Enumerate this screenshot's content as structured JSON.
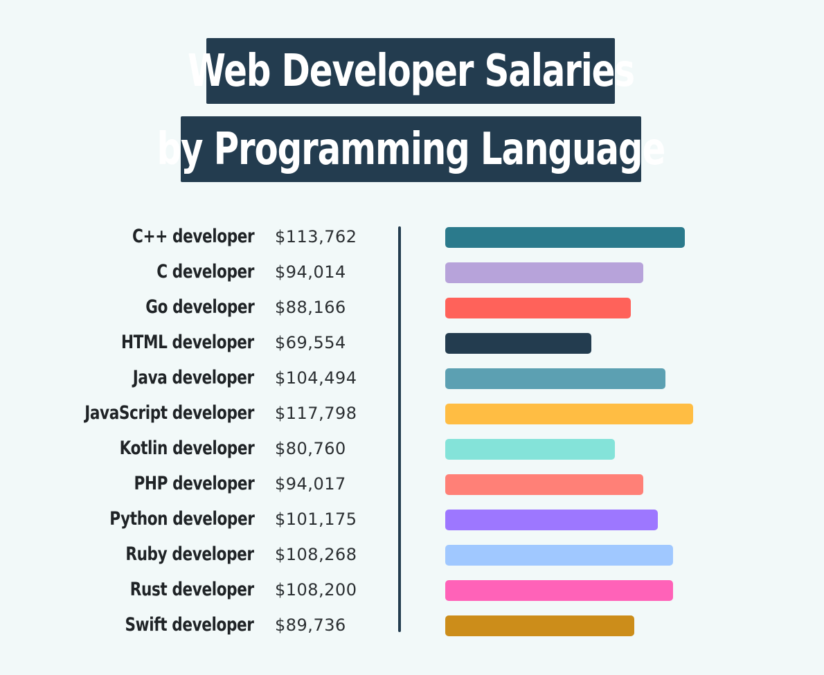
{
  "title": {
    "line1": "Web Developer Salaries",
    "line2": "by Programming Language"
  },
  "rows": [
    {
      "label": "C++ developer",
      "value": "$113,762",
      "color": "#2b7a8c"
    },
    {
      "label": "C developer",
      "value": "$94,014",
      "color": "#b7a3da"
    },
    {
      "label": "Go developer",
      "value": "$88,166",
      "color": "#ff625a"
    },
    {
      "label": "HTML developer",
      "value": "$69,554",
      "color": "#233c4f"
    },
    {
      "label": "Java developer",
      "value": "$104,494",
      "color": "#5ca0b2"
    },
    {
      "label": "JavaScript developer",
      "value": "$117,798",
      "color": "#ffbd43"
    },
    {
      "label": "Kotlin developer",
      "value": "$80,760",
      "color": "#84e3d9"
    },
    {
      "label": "PHP developer",
      "value": "$94,017",
      "color": "#ff8077"
    },
    {
      "label": "Python developer",
      "value": "$101,175",
      "color": "#9d77ff"
    },
    {
      "label": "Ruby developer",
      "value": "$108,268",
      "color": "#a0c8ff"
    },
    {
      "label": "Rust developer",
      "value": "$108,200",
      "color": "#ff62b8"
    },
    {
      "label": "Swift developer",
      "value": "$89,736",
      "color": "#cc8d1a"
    }
  ],
  "chart_data": {
    "type": "bar",
    "orientation": "horizontal",
    "title": "Web Developer Salaries by Programming Language",
    "xlabel": "",
    "ylabel": "",
    "grid": false,
    "legend": false,
    "categories": [
      "C++ developer",
      "C developer",
      "Go developer",
      "HTML developer",
      "Java developer",
      "JavaScript developer",
      "Kotlin developer",
      "PHP developer",
      "Python developer",
      "Ruby developer",
      "Rust developer",
      "Swift developer"
    ],
    "values": [
      113762,
      94014,
      88166,
      69554,
      104494,
      117798,
      80760,
      94017,
      101175,
      108268,
      108200,
      89736
    ],
    "value_labels": [
      "$113,762",
      "$94,014",
      "$88,166",
      "$69,554",
      "$104,494",
      "$117,798",
      "$80,760",
      "$94,017",
      "$101,175",
      "$108,268",
      "$108,200",
      "$89,736"
    ],
    "colors": [
      "#2b7a8c",
      "#b7a3da",
      "#ff625a",
      "#233c4f",
      "#5ca0b2",
      "#ffbd43",
      "#84e3d9",
      "#ff8077",
      "#9d77ff",
      "#a0c8ff",
      "#ff62b8",
      "#cc8d1a"
    ]
  }
}
